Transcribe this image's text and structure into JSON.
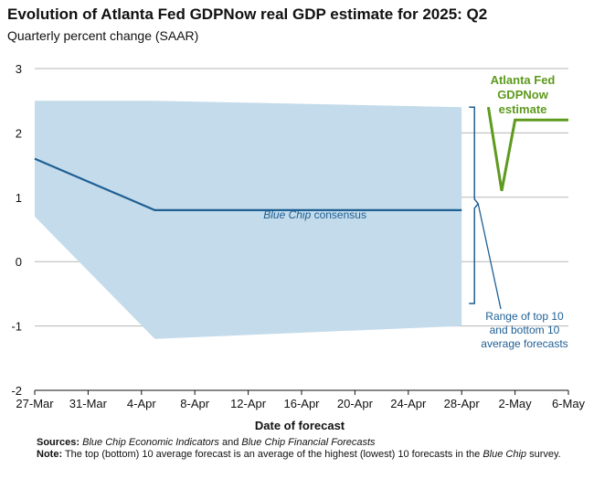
{
  "title": "Evolution of Atlanta Fed GDPNow real GDP estimate for 2025: Q2",
  "subtitle": "Quarterly percent change (SAAR)",
  "footnote": {
    "sources_label": "Sources:",
    "sources_part1": "Blue Chip Economic Indicators",
    "sources_and": " and ",
    "sources_part2": "Blue Chip Financial Forecasts",
    "note_label": "Note:",
    "note_text1": " The top (bottom) 10 average forecast is an average of the highest (lowest) 10 forecasts in the ",
    "note_italic": "Blue Chip",
    "note_text2": " survey."
  },
  "chart_data": {
    "type": "line",
    "xlabel": "Date of forecast",
    "ylabel": "",
    "ylim": [
      -2,
      3
    ],
    "yticks": [
      "-2",
      "-1",
      "0",
      "1",
      "2",
      "3"
    ],
    "xlim": [
      "2025-03-27",
      "2025-05-06"
    ],
    "xticks": [
      "27-Mar",
      "31-Mar",
      "4-Apr",
      "8-Apr",
      "12-Apr",
      "16-Apr",
      "20-Apr",
      "24-Apr",
      "28-Apr",
      "2-May",
      "6-May"
    ],
    "grid": "horizontal",
    "series": [
      {
        "name": "Blue Chip consensus",
        "color": "#1f5f94",
        "points": [
          [
            "2025-03-27",
            1.6
          ],
          [
            "2025-04-05",
            0.8
          ],
          [
            "2025-04-28",
            0.8
          ]
        ]
      },
      {
        "name": "Atlanta Fed GDPNow estimate",
        "color": "#5e9a1e",
        "points": [
          [
            "2025-04-30",
            2.4
          ],
          [
            "2025-05-01",
            1.1
          ],
          [
            "2025-05-02",
            2.2
          ],
          [
            "2025-05-06",
            2.2
          ]
        ]
      }
    ],
    "band": {
      "name": "Range of top 10 and bottom 10 average forecasts",
      "color": "#c3dbea",
      "upper": [
        [
          "2025-03-27",
          2.5
        ],
        [
          "2025-04-05",
          2.5
        ],
        [
          "2025-04-28",
          2.4
        ]
      ],
      "lower": [
        [
          "2025-03-27",
          0.7
        ],
        [
          "2025-04-05",
          -1.2
        ],
        [
          "2025-04-28",
          -1.0
        ]
      ]
    },
    "annotations": {
      "consensus_italic": "Blue Chip",
      "consensus_rest": " consensus",
      "gdpnow_line1": "Atlanta Fed",
      "gdpnow_line2": "GDPNow",
      "gdpnow_line3": "estimate",
      "range_line1": "Range of top 10",
      "range_line2": "and bottom 10",
      "range_line3": "average forecasts"
    }
  }
}
